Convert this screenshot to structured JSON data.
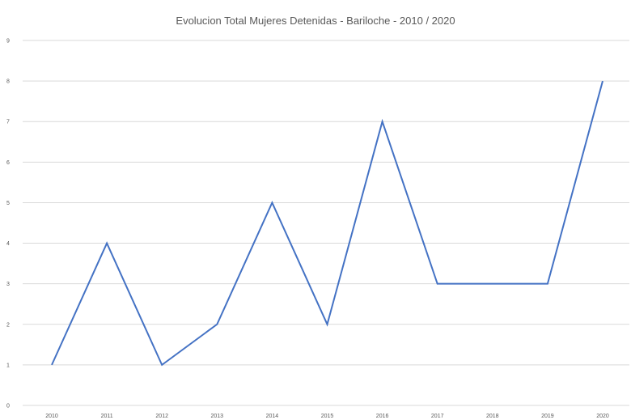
{
  "chart_data": {
    "type": "line",
    "title": "Evolucion Total Mujeres Detenidas - Bariloche - 2010 / 2020",
    "xlabel": "",
    "ylabel": "",
    "categories": [
      "2010",
      "2011",
      "2012",
      "2013",
      "2014",
      "2015",
      "2016",
      "2017",
      "2018",
      "2019",
      "2020"
    ],
    "series": [
      {
        "values": [
          1,
          4,
          1,
          2,
          5,
          2,
          7,
          3,
          3,
          3,
          8
        ]
      }
    ],
    "ylim": [
      0,
      9
    ],
    "yticks": [
      0,
      1,
      2,
      3,
      4,
      5,
      6,
      7,
      8,
      9
    ],
    "grid": true,
    "legend": "none",
    "colors": {
      "line": "#4472C4",
      "grid": "#D9D9D9",
      "text": "#595959"
    }
  }
}
